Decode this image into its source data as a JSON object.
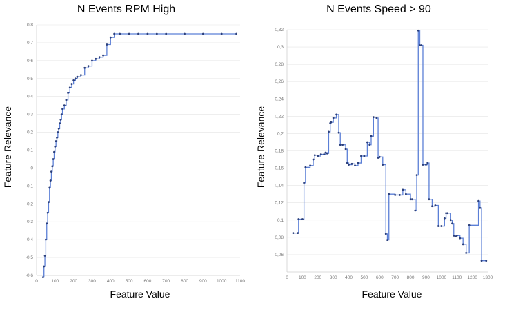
{
  "chart_data": [
    {
      "type": "line",
      "title": "N Events RPM High",
      "xlabel": "Feature Value",
      "ylabel": "Feature Relevance",
      "xlim": [
        0,
        1100
      ],
      "ylim": [
        -0.6,
        0.8
      ],
      "xticks": [
        0,
        100,
        200,
        300,
        400,
        500,
        600,
        700,
        800,
        900,
        1000,
        1100
      ],
      "yticks": [
        -0.6,
        -0.5,
        -0.4,
        -0.3,
        -0.2,
        -0.1,
        0,
        0.1,
        0.2,
        0.3,
        0.4,
        0.5,
        0.6,
        0.7,
        0.8
      ],
      "xtick_labels": [
        "0",
        "100",
        "200",
        "300",
        "400",
        "500",
        "600",
        "700",
        "800",
        "900",
        "1000",
        "1100"
      ],
      "ytick_labels": [
        "-0,6",
        "-0,5",
        "-0,4",
        "-0,3",
        "-0,2",
        "-0,1",
        "0",
        "0,1",
        "0,2",
        "0,3",
        "0,4",
        "0,5",
        "0,6",
        "0,7",
        "0,8"
      ],
      "grid": true,
      "line_color": "#5b7fd6",
      "marker_color": "#2b3f7a",
      "series": [
        {
          "x": [
            35,
            40,
            45,
            50,
            55,
            60,
            65,
            70,
            75,
            80,
            85,
            90,
            95,
            100,
            105,
            110,
            115,
            120,
            125,
            130,
            135,
            140,
            150,
            160,
            170,
            180,
            190,
            200,
            210,
            220,
            240,
            260,
            280,
            300,
            320,
            340,
            360,
            380,
            400,
            420,
            450,
            500,
            550,
            600,
            650,
            700,
            800,
            900,
            1000,
            1080
          ],
          "y": [
            -0.61,
            -0.55,
            -0.49,
            -0.4,
            -0.31,
            -0.25,
            -0.19,
            -0.11,
            -0.07,
            -0.02,
            0.01,
            0.05,
            0.09,
            0.12,
            0.15,
            0.17,
            0.2,
            0.22,
            0.25,
            0.27,
            0.3,
            0.33,
            0.35,
            0.38,
            0.42,
            0.45,
            0.47,
            0.49,
            0.5,
            0.51,
            0.52,
            0.56,
            0.57,
            0.6,
            0.61,
            0.62,
            0.63,
            0.69,
            0.73,
            0.75,
            0.75,
            0.75,
            0.75,
            0.75,
            0.75,
            0.75,
            0.75,
            0.75,
            0.75,
            0.75
          ]
        }
      ]
    },
    {
      "type": "line",
      "title": "N Events Speed > 90",
      "xlabel": "Feature Value",
      "ylabel": "Feature Relevance",
      "xlim": [
        0,
        1300
      ],
      "ylim": [
        0.04,
        0.32
      ],
      "xticks": [
        0,
        100,
        200,
        300,
        400,
        500,
        600,
        700,
        800,
        900,
        1000,
        1100,
        1200,
        1300
      ],
      "yticks": [
        0.06,
        0.08,
        0.1,
        0.12,
        0.14,
        0.16,
        0.18,
        0.2,
        0.22,
        0.24,
        0.26,
        0.28,
        0.3,
        0.32
      ],
      "xtick_labels": [
        "0",
        "100",
        "200",
        "300",
        "400",
        "500",
        "600",
        "700",
        "800",
        "900",
        "1000",
        "1100",
        "1200",
        "1300"
      ],
      "ytick_labels": [
        "0,06",
        "0,08",
        "0,1",
        "0,12",
        "0,14",
        "0,16",
        "0,18",
        "0,2",
        "0,22",
        "0,24",
        "0,26",
        "0,28",
        "0,3",
        "0,32"
      ],
      "grid": true,
      "line_color": "#5b7fd6",
      "marker_color": "#2b3f7a",
      "series": [
        {
          "x": [
            40,
            70,
            75,
            100,
            110,
            120,
            150,
            170,
            180,
            200,
            220,
            240,
            250,
            260,
            270,
            280,
            285,
            300,
            320,
            335,
            345,
            360,
            380,
            390,
            400,
            420,
            440,
            460,
            480,
            500,
            520,
            535,
            545,
            560,
            580,
            590,
            600,
            620,
            640,
            650,
            660,
            700,
            730,
            750,
            770,
            800,
            810,
            830,
            840,
            850,
            860,
            870,
            880,
            900,
            910,
            920,
            940,
            960,
            980,
            1000,
            1020,
            1030,
            1040,
            1060,
            1070,
            1080,
            1090,
            1100,
            1120,
            1140,
            1160,
            1180,
            1240,
            1250,
            1260,
            1290
          ],
          "y": [
            0.085,
            0.085,
            0.101,
            0.101,
            0.143,
            0.161,
            0.163,
            0.17,
            0.175,
            0.174,
            0.176,
            0.176,
            0.178,
            0.177,
            0.202,
            0.212,
            0.213,
            0.218,
            0.222,
            0.201,
            0.187,
            0.187,
            0.182,
            0.166,
            0.164,
            0.165,
            0.163,
            0.166,
            0.174,
            0.174,
            0.19,
            0.187,
            0.197,
            0.219,
            0.218,
            0.172,
            0.173,
            0.164,
            0.084,
            0.077,
            0.13,
            0.129,
            0.129,
            0.135,
            0.13,
            0.124,
            0.124,
            0.111,
            0.152,
            0.319,
            0.302,
            0.302,
            0.164,
            0.164,
            0.166,
            0.124,
            0.116,
            0.117,
            0.093,
            0.093,
            0.102,
            0.108,
            0.108,
            0.1,
            0.096,
            0.082,
            0.081,
            0.082,
            0.079,
            0.072,
            0.062,
            0.094,
            0.122,
            0.114,
            0.053,
            0.053
          ]
        }
      ]
    }
  ]
}
